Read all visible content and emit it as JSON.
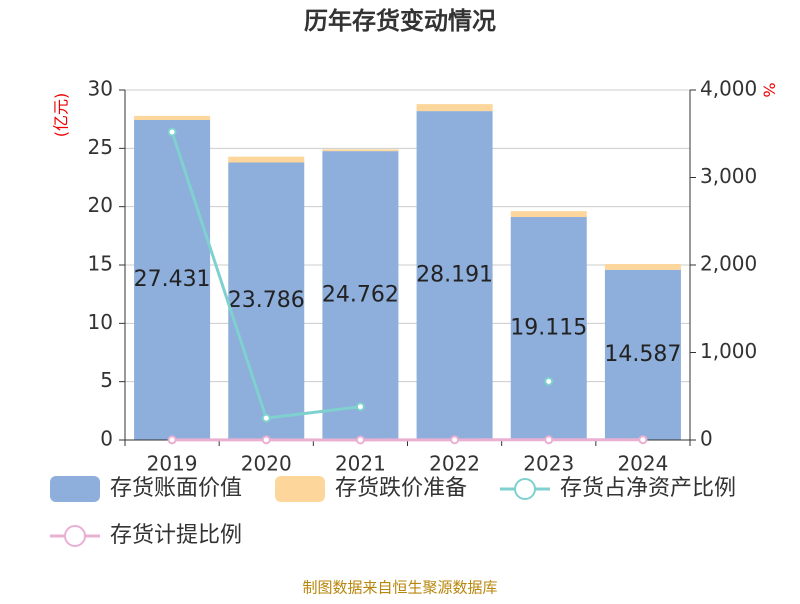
{
  "chart_data": {
    "type": "bar",
    "title": "历年存货变动情况",
    "y_label": "(亿元)",
    "y2_label": "%",
    "source": "制图数据来自恒生聚源数据库",
    "categories": [
      "2019",
      "2020",
      "2021",
      "2022",
      "2023",
      "2024"
    ],
    "series": [
      {
        "name": "存货账面价值",
        "color": "#8eaedb",
        "type": "bar",
        "values": [
          27.431,
          23.786,
          24.762,
          28.191,
          19.115,
          14.587
        ]
      },
      {
        "name": "存货跌价准备",
        "color": "#fcd69a",
        "type": "bar",
        "values": [
          0.35,
          0.5,
          0.15,
          0.6,
          0.5,
          0.5
        ]
      },
      {
        "name": "存货占净资产比例",
        "color": "#7fd1cf",
        "type": "line",
        "axis": "y2",
        "values": [
          3520,
          250,
          380,
          null,
          670,
          null
        ]
      },
      {
        "name": "存货计提比例",
        "color": "#eab0d4",
        "type": "line",
        "axis": "y2",
        "values": [
          1.3,
          2.1,
          0.6,
          2.1,
          2.6,
          3.4
        ]
      }
    ],
    "ylim": [
      0,
      30
    ],
    "yticks": [
      0,
      5,
      10,
      15,
      20,
      25,
      30
    ],
    "y2lim": [
      0,
      4000
    ],
    "y2ticks": [
      0,
      {
        "value": 1000,
        "label": "1,000"
      },
      {
        "value": 2000,
        "label": "2,000"
      },
      {
        "value": 3000,
        "label": "3,000"
      },
      {
        "value": 4000,
        "label": "4,000"
      }
    ],
    "grid": true
  }
}
